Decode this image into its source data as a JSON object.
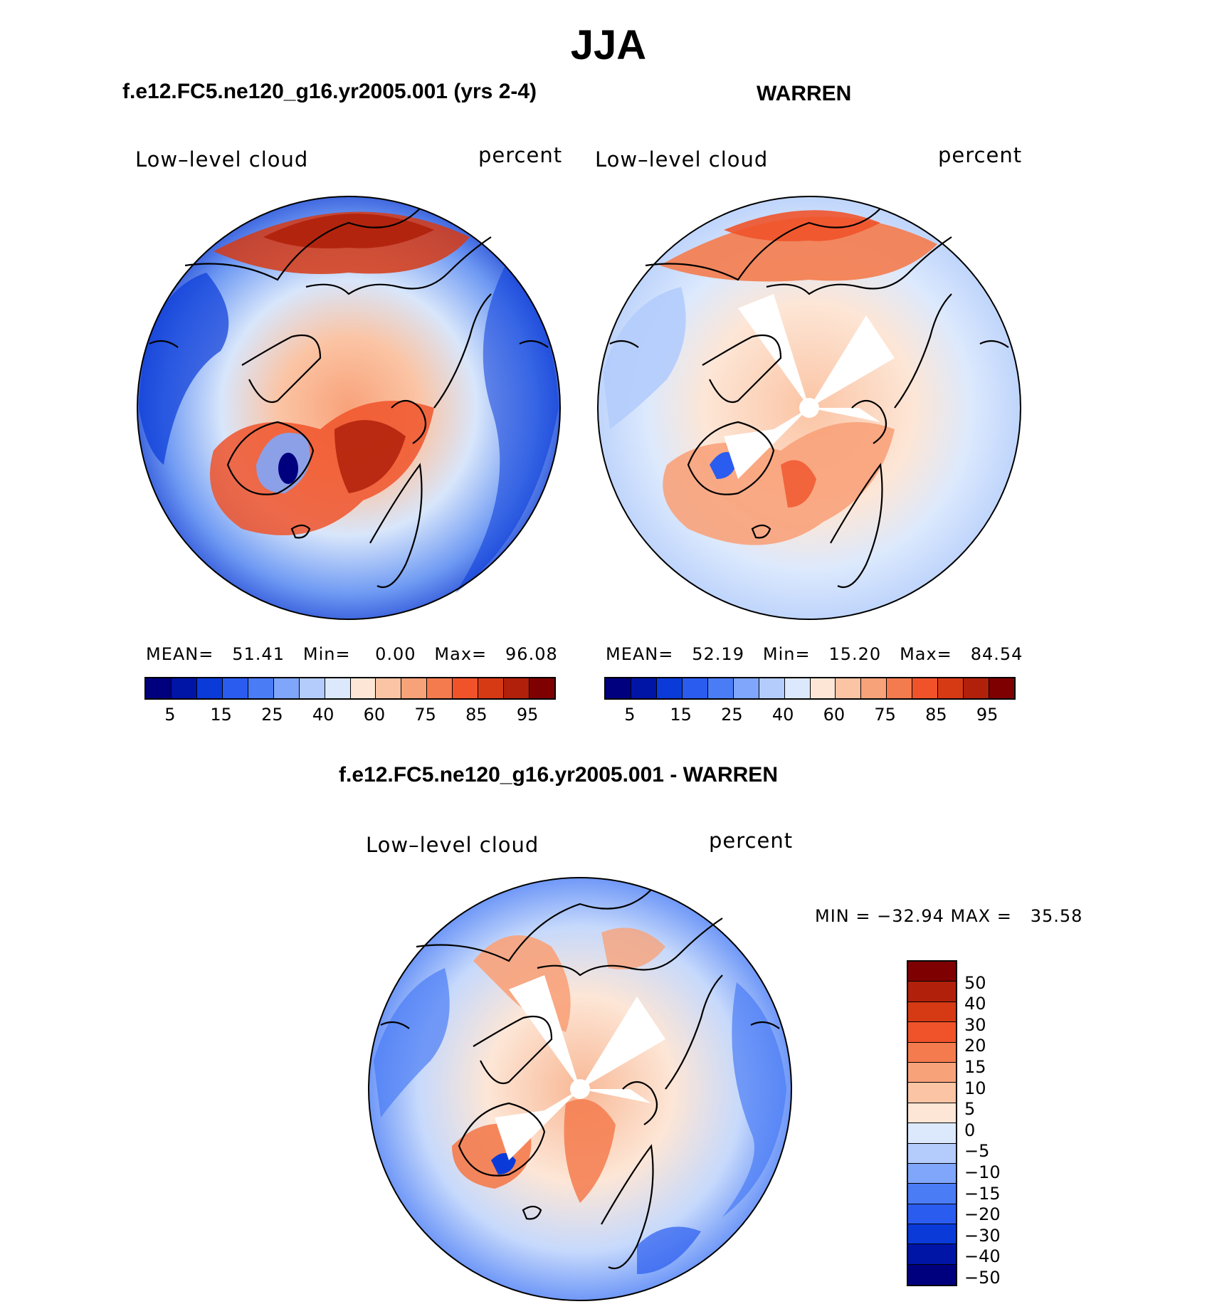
{
  "title": "JJA",
  "panels": [
    {
      "heading": "f.e12.FC5.ne120_g16.yr2005.001 (yrs 2-4)",
      "variable": "Low–level cloud",
      "units": "percent",
      "stats": {
        "mean_label": "MEAN=",
        "mean": "51.41",
        "min_label": "Min=",
        "min": "0.00",
        "max_label": "Max=",
        "max": "96.08"
      }
    },
    {
      "heading": "WARREN",
      "variable": "Low–level cloud",
      "units": "percent",
      "stats": {
        "mean_label": "MEAN=",
        "mean": "52.19",
        "min_label": "Min=",
        "min": "15.20",
        "max_label": "Max=",
        "max": "84.54"
      }
    },
    {
      "heading": "f.e12.FC5.ne120_g16.yr2005.001 - WARREN",
      "variable": "Low–level cloud",
      "units": "percent",
      "stats_text": "MIN = −32.94 MAX =   35.58"
    }
  ],
  "colorbar_abs": {
    "tick_labels": [
      "5",
      "15",
      "25",
      "40",
      "60",
      "75",
      "85",
      "95"
    ],
    "colors": [
      "#00007f",
      "#0014a6",
      "#0a3bd9",
      "#2a5cf0",
      "#4a7cf5",
      "#7fa6fa",
      "#b3ccfc",
      "#dce9fd",
      "#fde6d6",
      "#fbc4a4",
      "#f8a27a",
      "#f47b4d",
      "#f0532a",
      "#d63a14",
      "#b0200a",
      "#7f0000"
    ]
  },
  "colorbar_diff": {
    "tick_labels": [
      "50",
      "40",
      "30",
      "20",
      "15",
      "10",
      "5",
      "0",
      "−5",
      "−10",
      "−15",
      "−20",
      "−30",
      "−40",
      "−50"
    ],
    "colors": [
      "#7f0000",
      "#b0200a",
      "#d63a14",
      "#f0532a",
      "#f47b4d",
      "#f8a27a",
      "#fbc4a4",
      "#fde6d6",
      "#dce9fd",
      "#b3ccfc",
      "#7fa6fa",
      "#4a7cf5",
      "#2a5cf0",
      "#0a3bd9",
      "#0014a6",
      "#00007f"
    ]
  }
}
